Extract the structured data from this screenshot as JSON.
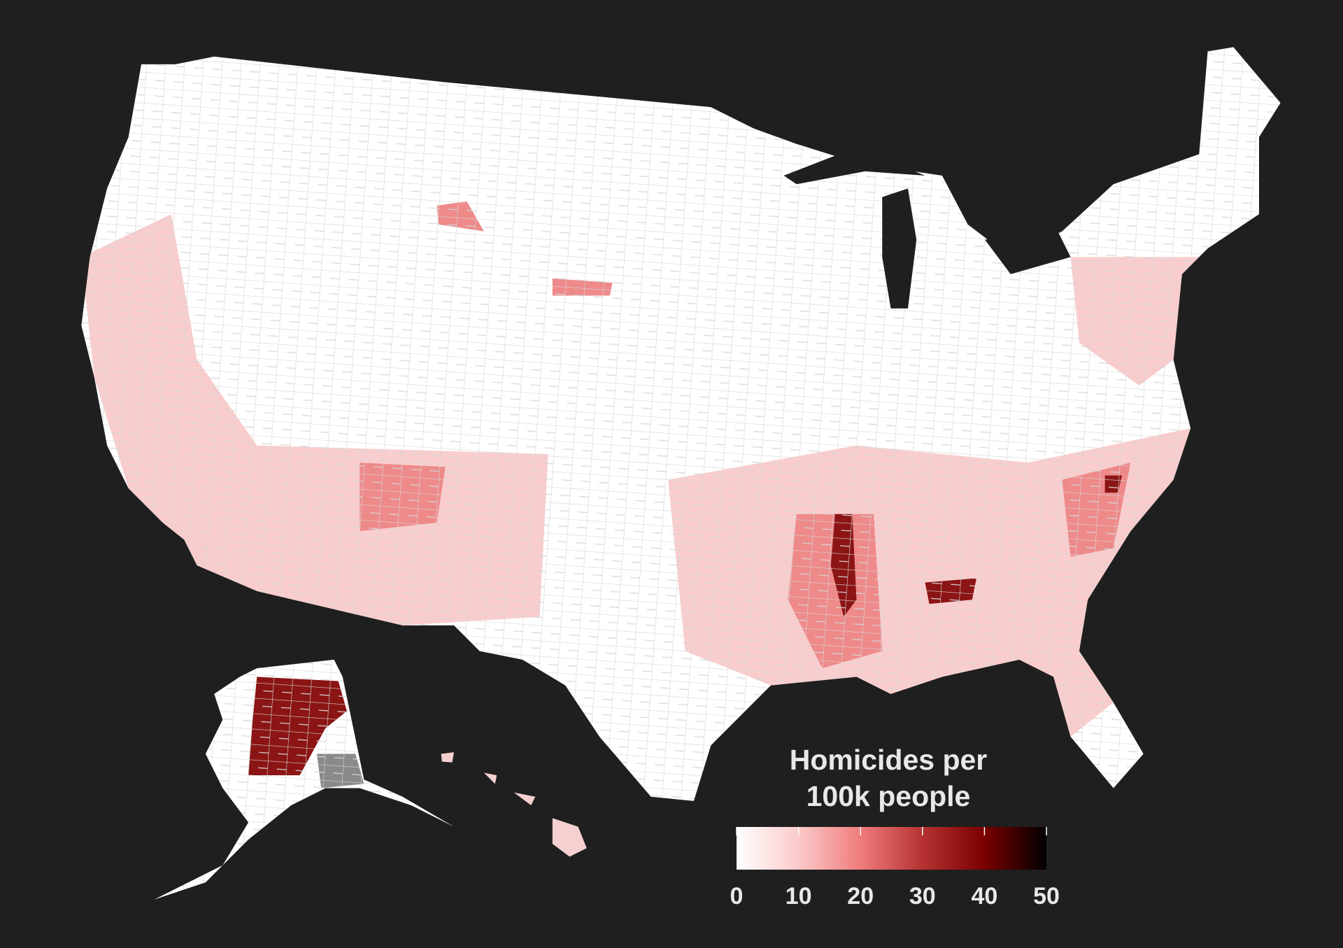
{
  "legend": {
    "title": "Homicides per 100k people",
    "lim": [
      0,
      50
    ],
    "ticks": [
      0,
      10,
      20,
      30,
      40,
      50
    ],
    "colors": [
      "#ffffff",
      "#fbcaca",
      "#f07c7c",
      "#b63232",
      "#7a0000",
      "#000000"
    ]
  }
}
